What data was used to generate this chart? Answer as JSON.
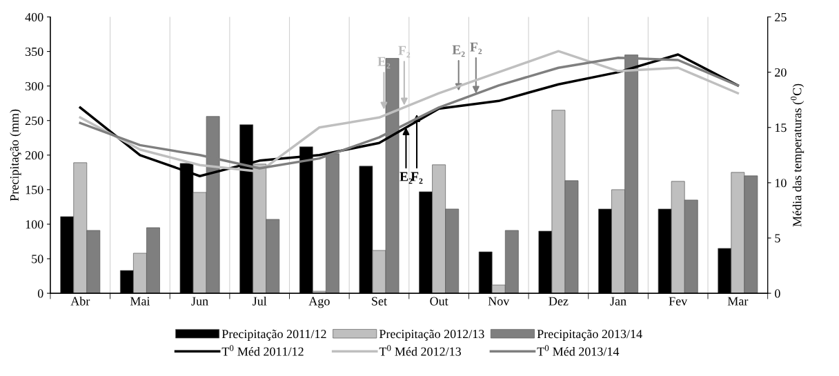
{
  "chart_data": {
    "type": "bar",
    "categories": [
      "Abr",
      "Mai",
      "Jun",
      "Jul",
      "Ago",
      "Set",
      "Out",
      "Nov",
      "Dez",
      "Jan",
      "Fev",
      "Mar"
    ],
    "series": [
      {
        "name": "Precipitação 2011/12",
        "color": "#000000",
        "values": [
          111,
          33,
          188,
          244,
          212,
          184,
          147,
          60,
          90,
          122,
          122,
          65
        ]
      },
      {
        "name": "Precipitação 2012/13",
        "color": "#bfbfbf",
        "values": [
          189,
          58,
          146,
          187,
          3,
          62,
          186,
          12,
          265,
          150,
          162,
          175
        ]
      },
      {
        "name": "Precipitação 2013/14",
        "color": "#7f7f7f",
        "values": [
          91,
          95,
          256,
          107,
          202,
          340,
          122,
          91,
          163,
          345,
          135,
          170
        ]
      },
      {
        "name": "T$^{0}$ Méd 2011/12",
        "type": "line",
        "axis": "y2",
        "color": "#000000",
        "values": [
          16.8,
          12.5,
          10.6,
          12.0,
          12.5,
          13.6,
          16.7,
          17.4,
          18.9,
          20.0,
          21.6,
          18.8
        ]
      },
      {
        "name": "T$^{0}$ Méd 2012/13",
        "type": "line",
        "axis": "y2",
        "color": "#bfbfbf",
        "values": [
          15.9,
          13.0,
          11.6,
          11.0,
          15.0,
          15.9,
          18.1,
          20.0,
          21.9,
          20.1,
          20.4,
          18.1
        ]
      },
      {
        "name": "T$^{0}$ Méd 2013/14",
        "type": "line",
        "axis": "y2",
        "color": "#7f7f7f",
        "values": [
          15.4,
          13.4,
          12.5,
          11.3,
          12.2,
          14.1,
          16.8,
          18.8,
          20.4,
          21.3,
          21.1,
          18.8
        ]
      }
    ],
    "ylabel": "Precipitação (mm)",
    "y2label": "Média das temperaturas ($^{0}$C)",
    "ylim": [
      0,
      400
    ],
    "yticks": [
      0,
      50,
      100,
      150,
      200,
      250,
      300,
      350,
      400
    ],
    "y2lim": [
      0,
      25
    ],
    "y2ticks": [
      0,
      5,
      10,
      15,
      20,
      25
    ],
    "annotations": [
      {
        "text": "E₂",
        "y": 266
      },
      {
        "text": "F₂",
        "y": 272
      },
      {
        "text": "E₂",
        "y": 293
      },
      {
        "text": "F₂",
        "y": 289
      },
      {
        "text": "E₂",
        "y": 240
      },
      {
        "text": "F₂",
        "y": 259
      }
    ],
    "grid": "x",
    "legend": "bottom",
    "marker": "none",
    "line_style": "solid"
  }
}
